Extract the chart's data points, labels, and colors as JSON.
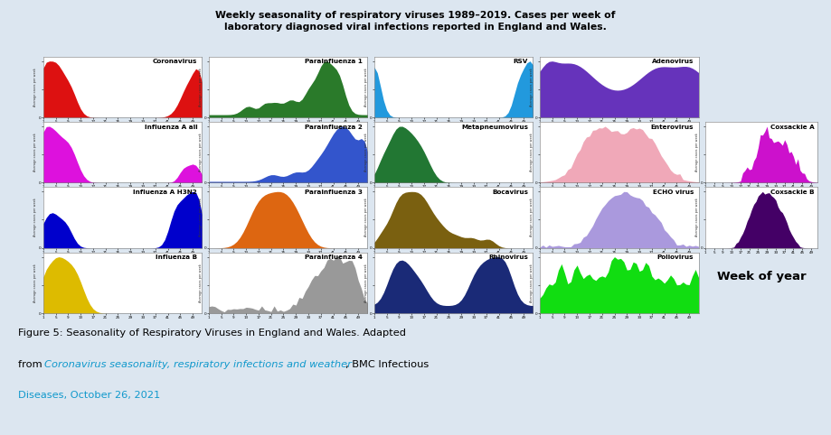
{
  "title_line1": "Weekly seasonality of respiratory viruses 1989–2019. Cases per week of",
  "title_line2": "laboratory diagnosed viral infections reported in England and Wales.",
  "background": "#dce6f0",
  "viruses": [
    {
      "name": "Coronavirus",
      "color": "#dd1111",
      "row": 0,
      "col": 0,
      "shape": "coronavirus"
    },
    {
      "name": "Parainfluenza 1",
      "color": "#2a7a2a",
      "row": 0,
      "col": 1,
      "shape": "parainfluenza1"
    },
    {
      "name": "RSV",
      "color": "#2299dd",
      "row": 0,
      "col": 2,
      "shape": "rsv"
    },
    {
      "name": "Adenovirus",
      "color": "#6633bb",
      "row": 0,
      "col": 3,
      "shape": "adenovirus"
    },
    {
      "name": "Influenza A all",
      "color": "#dd11dd",
      "row": 1,
      "col": 0,
      "shape": "influenza_a_all"
    },
    {
      "name": "Parainfluenza 2",
      "color": "#3355cc",
      "row": 1,
      "col": 1,
      "shape": "parainfluenza2"
    },
    {
      "name": "Metapneumovirus",
      "color": "#227733",
      "row": 1,
      "col": 2,
      "shape": "metapneumovirus"
    },
    {
      "name": "Enterovirus",
      "color": "#f0a8b8",
      "row": 1,
      "col": 3,
      "shape": "enterovirus"
    },
    {
      "name": "Influenza A H3N2",
      "color": "#0000cc",
      "row": 2,
      "col": 0,
      "shape": "influenza_h3n2"
    },
    {
      "name": "Parainfluenza 3",
      "color": "#dd6611",
      "row": 2,
      "col": 1,
      "shape": "parainfluenza3"
    },
    {
      "name": "Bocavirus",
      "color": "#7a6010",
      "row": 2,
      "col": 2,
      "shape": "bocavirus"
    },
    {
      "name": "ECHO virus",
      "color": "#aa99dd",
      "row": 2,
      "col": 3,
      "shape": "echo_virus"
    },
    {
      "name": "Influenza B",
      "color": "#ddbb00",
      "row": 3,
      "col": 0,
      "shape": "influenza_b"
    },
    {
      "name": "Parainfluenza 4",
      "color": "#999999",
      "row": 3,
      "col": 1,
      "shape": "parainfluenza4"
    },
    {
      "name": "Rhinovirus",
      "color": "#1a2a77",
      "row": 3,
      "col": 2,
      "shape": "rhinovirus"
    },
    {
      "name": "Poliovirus",
      "color": "#11dd11",
      "row": 3,
      "col": 3,
      "shape": "poliovirus"
    }
  ],
  "right_panels": [
    {
      "name": "Coxsackie A",
      "color": "#cc11cc",
      "row": 1,
      "shape": "coxsackie_a"
    },
    {
      "name": "Coxsackie B",
      "color": "#440066",
      "row": 2,
      "shape": "coxsackie_b"
    }
  ]
}
